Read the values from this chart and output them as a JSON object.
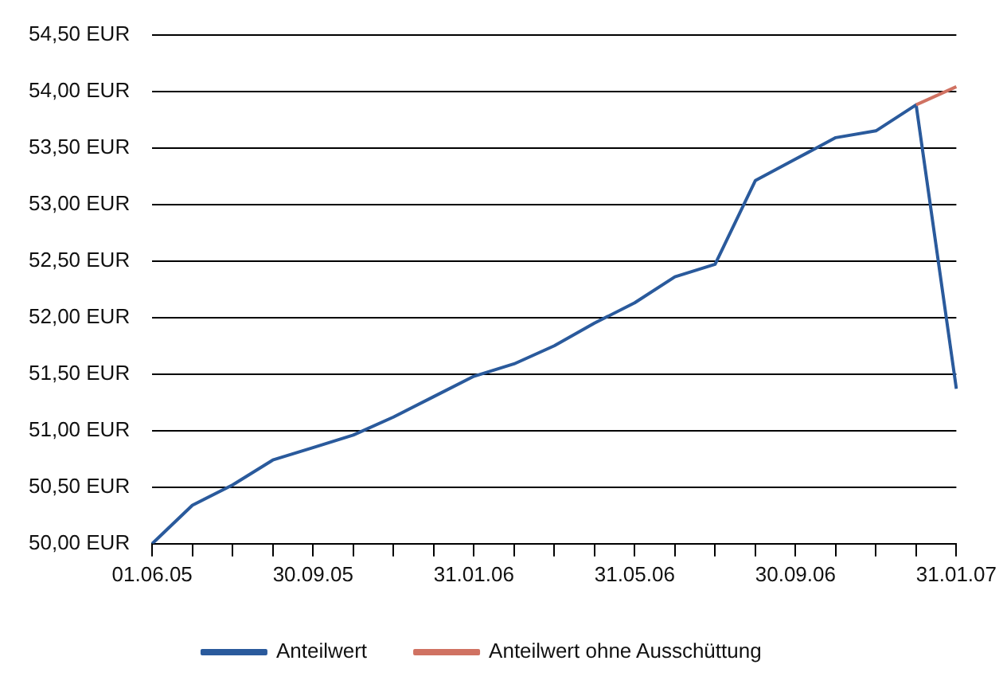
{
  "chart_data": {
    "type": "line",
    "categories": [
      "01.06.05",
      null,
      null,
      null,
      "30.09.05",
      null,
      null,
      null,
      "31.01.06",
      null,
      null,
      null,
      "31.05.06",
      null,
      null,
      null,
      "30.09.06",
      null,
      null,
      null,
      "31.01.07"
    ],
    "series": [
      {
        "name": "Anteilwert",
        "color": "#2a5a9c",
        "values": [
          50.0,
          50.34,
          50.52,
          50.74,
          50.85,
          50.96,
          51.12,
          51.3,
          51.48,
          51.59,
          51.75,
          51.95,
          52.13,
          52.36,
          52.47,
          53.21,
          53.4,
          53.59,
          53.65,
          53.88,
          51.37
        ]
      },
      {
        "name": "Anteilwert ohne Ausschüttung",
        "color": "#d07262",
        "values": [
          null,
          null,
          null,
          null,
          null,
          null,
          null,
          null,
          null,
          null,
          null,
          null,
          null,
          null,
          null,
          null,
          null,
          null,
          null,
          53.88,
          54.04
        ]
      }
    ],
    "ylim": [
      50,
      54.5
    ],
    "yticks": [
      {
        "value": 50,
        "label": "50,00 EUR"
      },
      {
        "value": 50.5,
        "label": "50,50 EUR"
      },
      {
        "value": 51,
        "label": "51,00 EUR"
      },
      {
        "value": 51.5,
        "label": "51,50 EUR"
      },
      {
        "value": 52,
        "label": "52,00 EUR"
      },
      {
        "value": 52.5,
        "label": "52,50 EUR"
      },
      {
        "value": 53,
        "label": "53,00 EUR"
      },
      {
        "value": 53.5,
        "label": "53,50 EUR"
      },
      {
        "value": 54,
        "label": "54,00 EUR"
      },
      {
        "value": 54.5,
        "label": "54,50 EUR"
      }
    ],
    "grid": "y",
    "legend": "bottom",
    "marker": "none",
    "line_style": "solid"
  }
}
